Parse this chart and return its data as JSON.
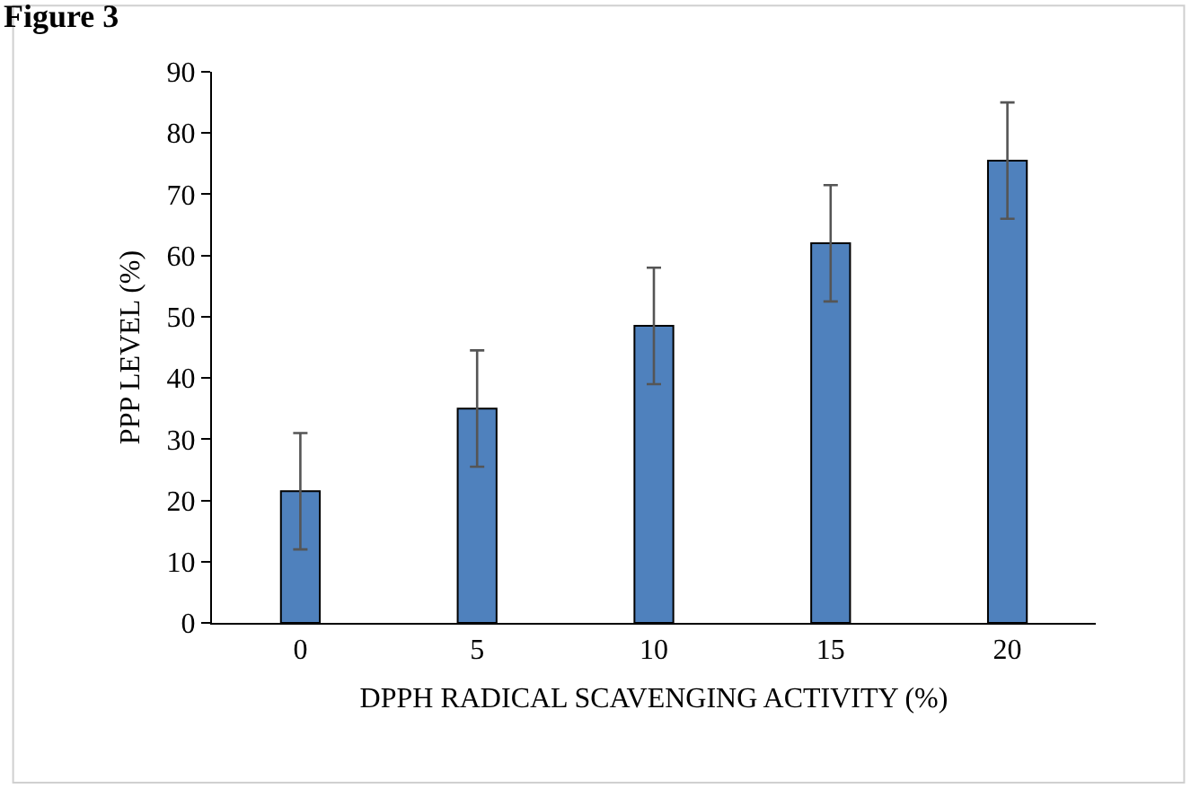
{
  "chart_data": {
    "type": "bar",
    "title": "Figure 3",
    "xlabel": "DPPH RADICAL SCAVENGING ACTIVITY (%)",
    "ylabel": "PPP LEVEL (%)",
    "categories": [
      "0",
      "5",
      "10",
      "15",
      "20"
    ],
    "values": [
      21.5,
      35,
      48.5,
      62,
      75.5
    ],
    "errors": [
      9.5,
      9.5,
      9.5,
      9.5,
      9.5
    ],
    "color": "#4f81bd",
    "ylim": [
      0,
      90
    ],
    "yticks": [
      0,
      10,
      20,
      30,
      40,
      50,
      60,
      70,
      80,
      90
    ],
    "grid": false
  }
}
